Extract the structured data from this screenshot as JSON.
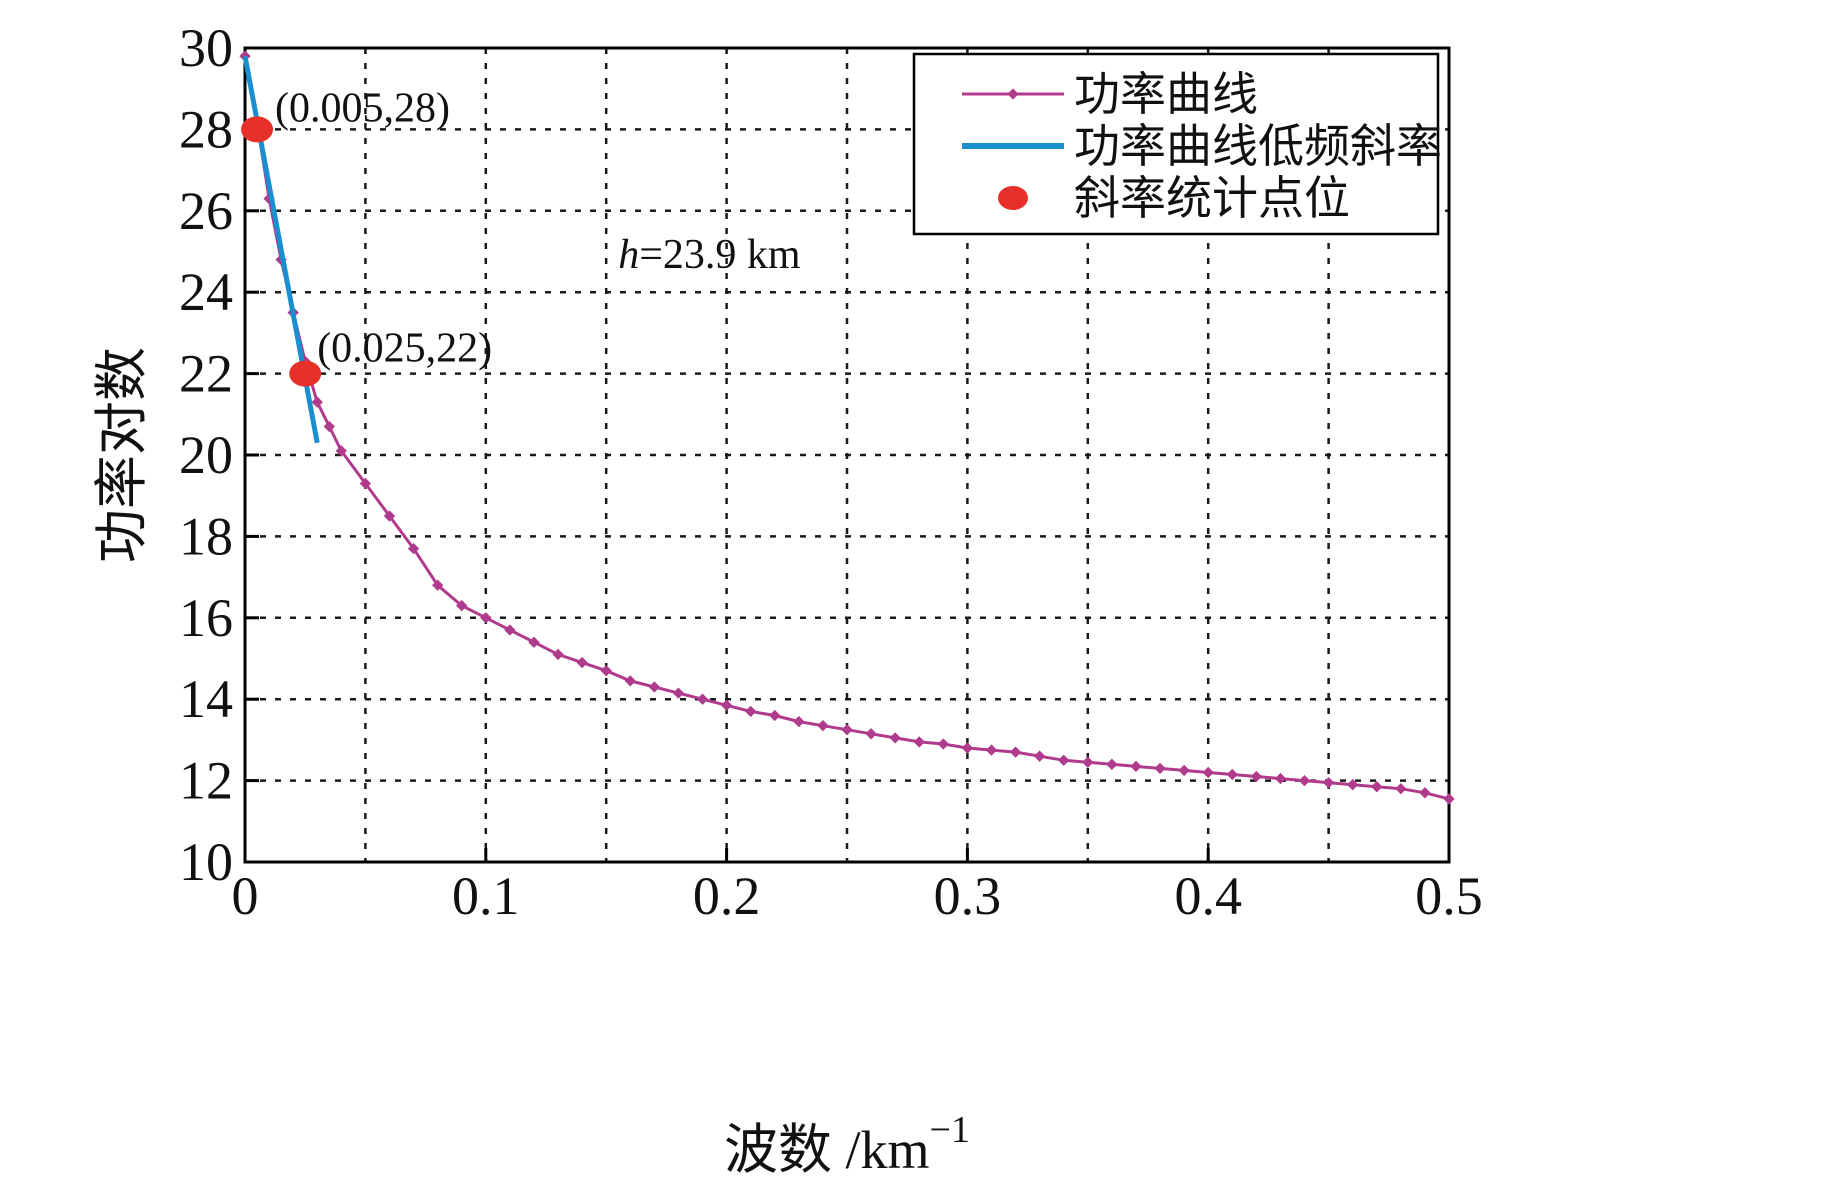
{
  "chart_data": {
    "type": "line",
    "title": "",
    "xlabel": "波数 /km",
    "xlabel_superscript": "−1",
    "ylabel": "功率对数",
    "xlim": [
      0,
      0.5
    ],
    "ylim": [
      10,
      30
    ],
    "x_ticks": [
      0,
      0.1,
      0.2,
      0.3,
      0.4,
      0.5
    ],
    "x_tick_labels": [
      "0",
      "0.1",
      "0.2",
      "0.3",
      "0.4",
      "0.5"
    ],
    "y_ticks": [
      10,
      12,
      14,
      16,
      18,
      20,
      22,
      24,
      26,
      28,
      30
    ],
    "y_tick_labels": [
      "10",
      "12",
      "14",
      "16",
      "18",
      "20",
      "22",
      "24",
      "26",
      "28",
      "30"
    ],
    "grid": true,
    "legend_position": "top-right",
    "colors": {
      "power_curve": "#b03a8c",
      "slope_line": "#1a8fd0",
      "points": "#e8302a",
      "grid": "#1a1a1a",
      "axis": "#000000"
    },
    "series": [
      {
        "name": "功率曲线",
        "kind": "line-markers",
        "x": [
          0.0,
          0.005,
          0.01,
          0.015,
          0.02,
          0.025,
          0.03,
          0.035,
          0.04,
          0.05,
          0.06,
          0.07,
          0.08,
          0.09,
          0.1,
          0.11,
          0.12,
          0.13,
          0.14,
          0.15,
          0.16,
          0.17,
          0.18,
          0.19,
          0.2,
          0.21,
          0.22,
          0.23,
          0.24,
          0.25,
          0.26,
          0.27,
          0.28,
          0.29,
          0.3,
          0.31,
          0.32,
          0.33,
          0.34,
          0.35,
          0.36,
          0.37,
          0.38,
          0.39,
          0.4,
          0.41,
          0.42,
          0.43,
          0.44,
          0.45,
          0.46,
          0.47,
          0.48,
          0.49,
          0.5
        ],
        "y": [
          29.8,
          28.2,
          26.3,
          24.8,
          23.5,
          22.3,
          21.3,
          20.7,
          20.1,
          19.3,
          18.5,
          17.7,
          16.8,
          16.3,
          16.0,
          15.7,
          15.4,
          15.1,
          14.9,
          14.7,
          14.45,
          14.3,
          14.15,
          14.0,
          13.85,
          13.7,
          13.6,
          13.45,
          13.35,
          13.25,
          13.15,
          13.05,
          12.95,
          12.9,
          12.8,
          12.75,
          12.7,
          12.6,
          12.5,
          12.45,
          12.4,
          12.35,
          12.3,
          12.25,
          12.2,
          12.15,
          12.1,
          12.05,
          12.0,
          11.95,
          11.9,
          11.85,
          11.8,
          11.7,
          11.55
        ]
      },
      {
        "name": "功率曲线低频斜率",
        "kind": "line",
        "x": [
          0.0,
          0.03
        ],
        "y": [
          29.8,
          20.3
        ]
      },
      {
        "name": "斜率统计点位",
        "kind": "points",
        "x": [
          0.005,
          0.025
        ],
        "y": [
          28,
          22
        ]
      }
    ],
    "annotations": [
      {
        "text": "(0.005,28)",
        "x": 0.005,
        "y": 28
      },
      {
        "text": "(0.025,22)",
        "x": 0.025,
        "y": 22
      }
    ],
    "note_label": {
      "italic_part": "h",
      "rest": "=23.9 km",
      "x": 0.155,
      "y": 24.6
    }
  }
}
